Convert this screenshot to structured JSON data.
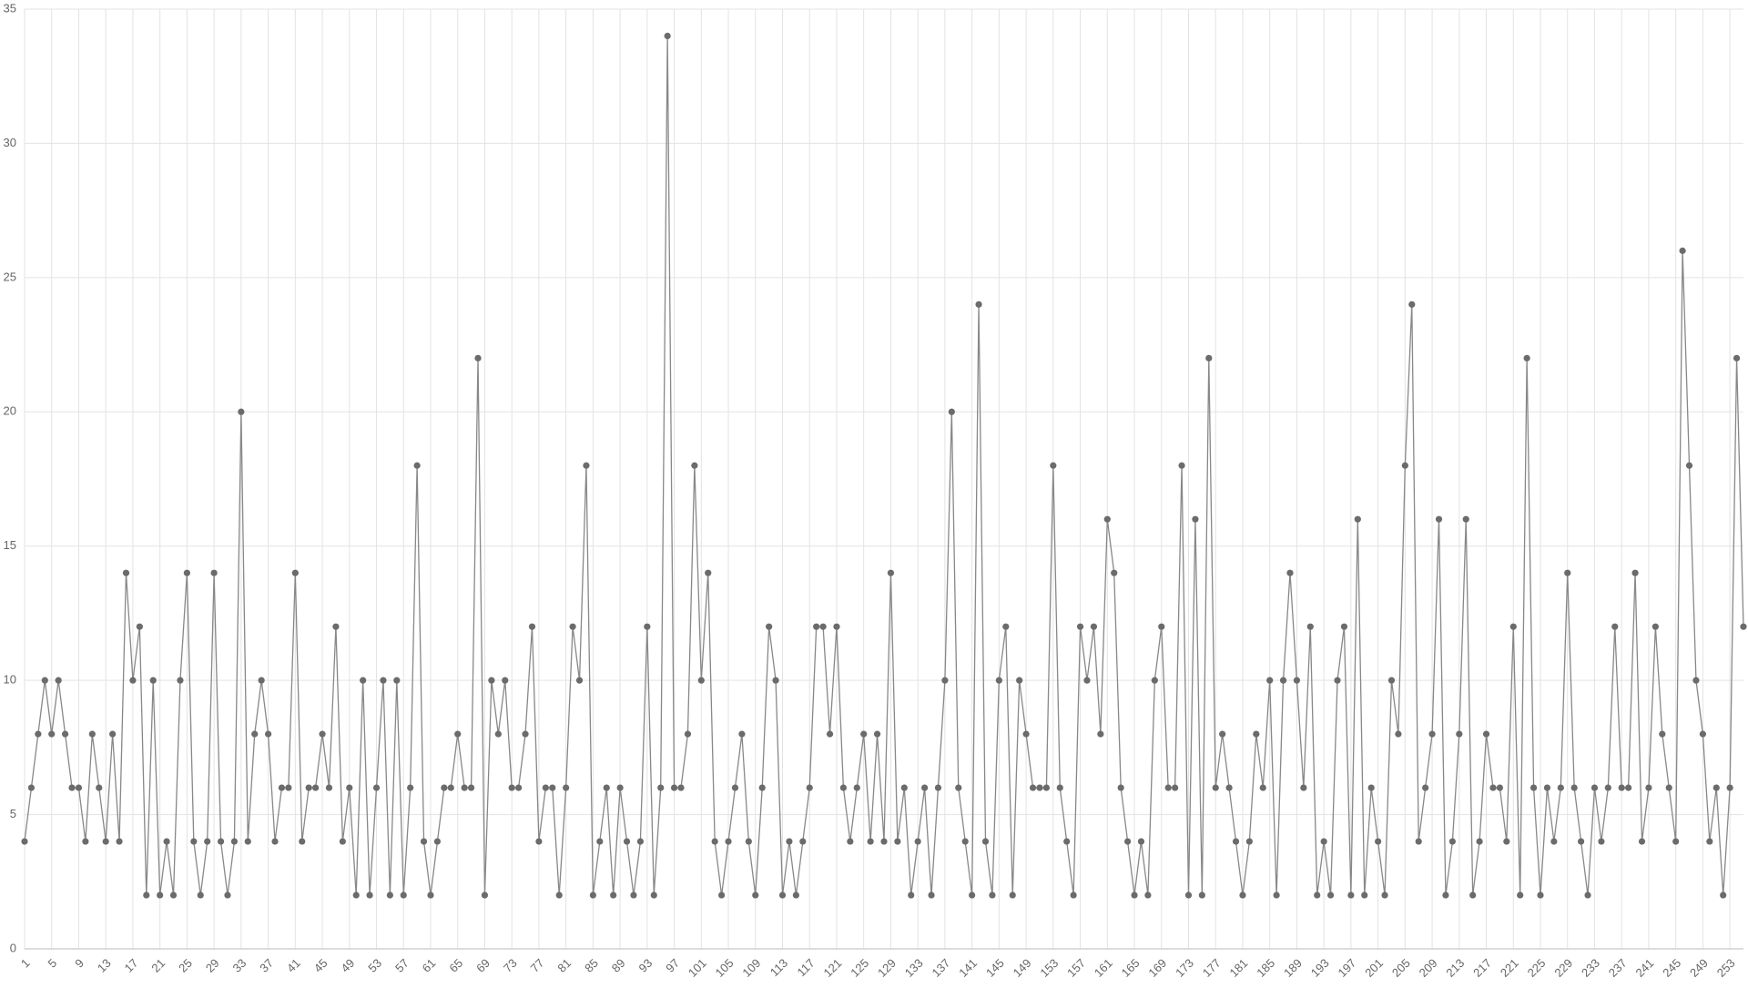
{
  "chart_data": {
    "type": "line",
    "categories": [
      1,
      null,
      null,
      null,
      5,
      null,
      null,
      null,
      9,
      null,
      null,
      null,
      13,
      null,
      null,
      null,
      17,
      null,
      null,
      null,
      21,
      null,
      null,
      null,
      25,
      null,
      null,
      null,
      29,
      null,
      null,
      null,
      33,
      null,
      null,
      null,
      37,
      null,
      null,
      null,
      41,
      null,
      null,
      null,
      45,
      null,
      null,
      null,
      49,
      null,
      null,
      null,
      53,
      null,
      null,
      null,
      57,
      null,
      null,
      null,
      61,
      null,
      null,
      null,
      65,
      null,
      null,
      null,
      69,
      null,
      null,
      null,
      73,
      null,
      null,
      null,
      77,
      null,
      null,
      null,
      81,
      null,
      null,
      null,
      85,
      null,
      null,
      null,
      89,
      null,
      null,
      null,
      93,
      null,
      null,
      null,
      97,
      null,
      null,
      null,
      101,
      null,
      null,
      null,
      105,
      null,
      null,
      null,
      109,
      null,
      null,
      null,
      113,
      null,
      null,
      null,
      117,
      null,
      null,
      null,
      121,
      null,
      null,
      null,
      125,
      null,
      null,
      null,
      129,
      null,
      null,
      null,
      133,
      null,
      null,
      null,
      137,
      null,
      null,
      null,
      141,
      null,
      null,
      null,
      145,
      null,
      null,
      null,
      149,
      null,
      null,
      null,
      153,
      null,
      null,
      null,
      157,
      null,
      null,
      null,
      161,
      null,
      null,
      null,
      165,
      null,
      null,
      null,
      169,
      null,
      null,
      null,
      173,
      null,
      null,
      null,
      177,
      null,
      null,
      null,
      181,
      null,
      null,
      null,
      185,
      null,
      null,
      null,
      189,
      null,
      null,
      null,
      193,
      null,
      null,
      null,
      197,
      null,
      null,
      null,
      201,
      null,
      null,
      null,
      205,
      null,
      null,
      null,
      209,
      null,
      null,
      null,
      213,
      null,
      null,
      null,
      217,
      null,
      null,
      null,
      221,
      null,
      null,
      null,
      225,
      null,
      null,
      null,
      229,
      null,
      null,
      null,
      233,
      null,
      null,
      null,
      237,
      null,
      null,
      null,
      241,
      null,
      null,
      null,
      245,
      null,
      null,
      null,
      249,
      null,
      null,
      null,
      253,
      null,
      null
    ],
    "values": [
      4,
      6,
      8,
      10,
      8,
      10,
      8,
      6,
      6,
      4,
      8,
      6,
      4,
      8,
      4,
      14,
      10,
      12,
      2,
      10,
      2,
      4,
      2,
      10,
      14,
      4,
      2,
      4,
      14,
      4,
      2,
      4,
      20,
      4,
      8,
      10,
      8,
      4,
      6,
      6,
      14,
      4,
      6,
      6,
      8,
      6,
      12,
      4,
      6,
      2,
      10,
      2,
      6,
      10,
      2,
      10,
      2,
      6,
      18,
      4,
      2,
      4,
      6,
      6,
      8,
      6,
      6,
      22,
      2,
      10,
      8,
      10,
      6,
      6,
      8,
      12,
      4,
      6,
      6,
      2,
      6,
      12,
      10,
      18,
      2,
      4,
      6,
      2,
      6,
      4,
      2,
      4,
      12,
      2,
      6,
      34,
      6,
      6,
      8,
      18,
      10,
      14,
      4,
      2,
      4,
      6,
      8,
      4,
      2,
      6,
      12,
      10,
      2,
      4,
      2,
      4,
      6,
      12,
      12,
      8,
      12,
      6,
      4,
      6,
      8,
      4,
      8,
      4,
      14,
      4,
      6,
      2,
      4,
      6,
      2,
      6,
      10,
      20,
      6,
      4,
      2,
      24,
      4,
      2,
      10,
      12,
      2,
      10,
      8,
      6,
      6,
      6,
      18,
      6,
      4,
      2,
      12,
      10,
      12,
      8,
      16,
      14,
      6,
      4,
      2,
      4,
      2,
      10,
      12,
      6,
      6,
      18,
      2,
      16,
      2,
      22,
      6,
      8,
      6,
      4,
      2,
      4,
      8,
      6,
      10,
      2,
      10,
      14,
      10,
      6,
      12,
      2,
      4,
      2,
      10,
      12,
      2,
      16,
      2,
      6,
      4,
      2,
      10,
      8,
      18,
      24,
      4,
      6,
      8,
      16,
      2,
      4,
      8,
      16,
      2,
      4,
      8,
      6,
      6,
      4,
      12,
      2,
      22,
      6,
      2,
      6,
      4,
      6,
      14,
      6,
      4,
      2,
      6,
      4,
      6,
      12,
      6,
      6,
      14,
      4,
      6,
      12,
      8,
      6,
      4,
      26,
      18,
      10,
      8,
      4,
      6,
      2,
      6,
      22,
      12
    ],
    "color": "#6b6b6b",
    "ylim": [
      0,
      35
    ],
    "yticks": [
      0,
      5,
      10,
      15,
      20,
      25,
      30,
      35
    ],
    "grid": true
  }
}
